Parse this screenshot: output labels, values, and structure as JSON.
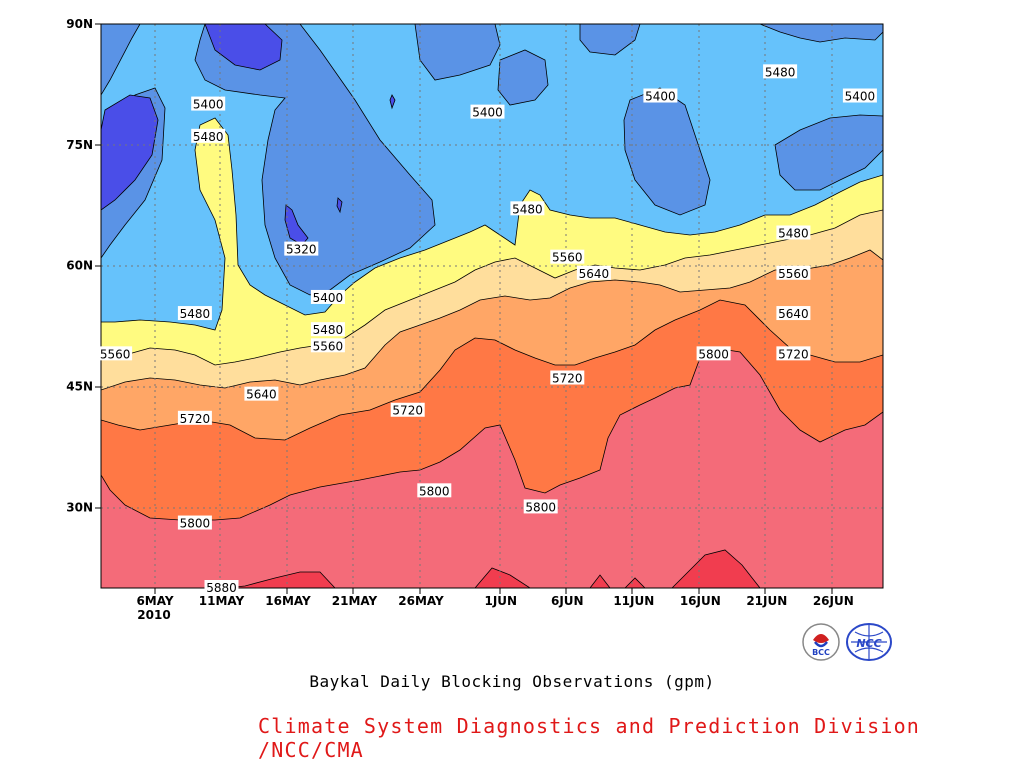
{
  "chart_data": {
    "type": "contour",
    "title": "Baykal Daily Blocking Observations (gpm)",
    "xlabel": "",
    "ylabel": "",
    "x_ticks": [
      "6MAY\n2010",
      "11MAY",
      "16MAY",
      "21MAY",
      "26MAY",
      "1JUN",
      "6JUN",
      "11JUN",
      "16JUN",
      "21JUN",
      "26JUN"
    ],
    "y_ticks": [
      "90N",
      "75N",
      "60N",
      "45N",
      "30N"
    ],
    "ylim": [
      20,
      90
    ],
    "contour_levels": [
      5320,
      5400,
      5480,
      5560,
      5640,
      5720,
      5800,
      5880
    ],
    "fill_colors": {
      "below_5320": "#4a4ee8",
      "5320_5400": "#5a93e6",
      "5400_5480": "#66c2fb",
      "5480_5560": "#fffb80",
      "5560_5640": "#ffde9c",
      "5640_5720": "#ffa666",
      "5720_5800": "#ff7845",
      "5800_5880": "#f46b79",
      "above_5880": "#f13d4f"
    },
    "labels": [
      {
        "text": "5400",
        "date": "10MAY",
        "lat": 80
      },
      {
        "text": "5480",
        "date": "10MAY",
        "lat": 76
      },
      {
        "text": "5320",
        "date": "17MAY",
        "lat": 62
      },
      {
        "text": "5400",
        "date": "19MAY",
        "lat": 56
      },
      {
        "text": "5480",
        "date": "19MAY",
        "lat": 52
      },
      {
        "text": "5560",
        "date": "19MAY",
        "lat": 50
      },
      {
        "text": "5480",
        "date": "9MAY",
        "lat": 54
      },
      {
        "text": "5560",
        "date": "3MAY",
        "lat": 49
      },
      {
        "text": "5640",
        "date": "14MAY",
        "lat": 44
      },
      {
        "text": "5720",
        "date": "9MAY",
        "lat": 41
      },
      {
        "text": "5720",
        "date": "25MAY",
        "lat": 42
      },
      {
        "text": "5800",
        "date": "27MAY",
        "lat": 32
      },
      {
        "text": "5800",
        "date": "9MAY",
        "lat": 28
      },
      {
        "text": "5880",
        "date": "11MAY",
        "lat": 20
      },
      {
        "text": "5400",
        "date": "31MAY",
        "lat": 79
      },
      {
        "text": "5480",
        "date": "3JUN",
        "lat": 67
      },
      {
        "text": "5560",
        "date": "6JUN",
        "lat": 61
      },
      {
        "text": "5640",
        "date": "8JUN",
        "lat": 59
      },
      {
        "text": "5720",
        "date": "6JUN",
        "lat": 46
      },
      {
        "text": "5800",
        "date": "4JUN",
        "lat": 30
      },
      {
        "text": "5400",
        "date": "13JUN",
        "lat": 81
      },
      {
        "text": "5800",
        "date": "17JUN",
        "lat": 49
      },
      {
        "text": "5480",
        "date": "22JUN",
        "lat": 84
      },
      {
        "text": "5480",
        "date": "23JUN",
        "lat": 64
      },
      {
        "text": "5560",
        "date": "23JUN",
        "lat": 59
      },
      {
        "text": "5640",
        "date": "23JUN",
        "lat": 54
      },
      {
        "text": "5720",
        "date": "23JUN",
        "lat": 49
      },
      {
        "text": "5400",
        "date": "28JUN",
        "lat": 81
      }
    ]
  },
  "title": "Baykal Daily Blocking Observations (gpm)",
  "footer": "Climate System Diagnostics and Prediction Division /NCC/CMA",
  "logos": [
    "BCC",
    "NCC"
  ]
}
